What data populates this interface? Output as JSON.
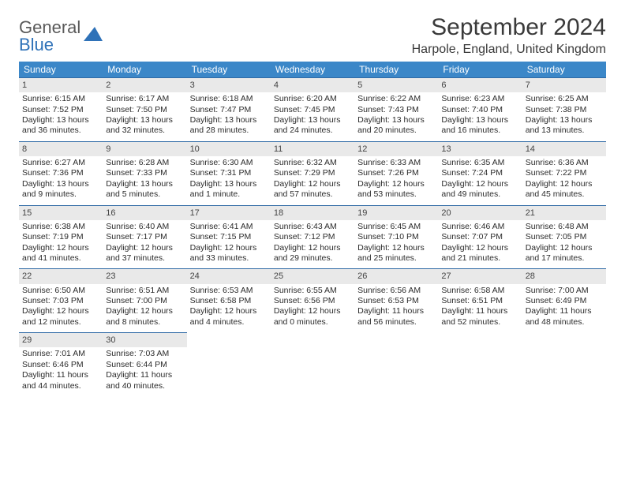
{
  "brand": {
    "part1": "General",
    "part2": "Blue"
  },
  "title": "September 2024",
  "location": "Harpole, England, United Kingdom",
  "header_bg": "#3b87c8",
  "daynum_bg": "#e9e9e9",
  "daynum_border": "#2f6aa5",
  "weekdays": [
    "Sunday",
    "Monday",
    "Tuesday",
    "Wednesday",
    "Thursday",
    "Friday",
    "Saturday"
  ],
  "weeks": [
    [
      {
        "n": "1",
        "sr": "Sunrise: 6:15 AM",
        "ss": "Sunset: 7:52 PM",
        "dl": "Daylight: 13 hours and 36 minutes."
      },
      {
        "n": "2",
        "sr": "Sunrise: 6:17 AM",
        "ss": "Sunset: 7:50 PM",
        "dl": "Daylight: 13 hours and 32 minutes."
      },
      {
        "n": "3",
        "sr": "Sunrise: 6:18 AM",
        "ss": "Sunset: 7:47 PM",
        "dl": "Daylight: 13 hours and 28 minutes."
      },
      {
        "n": "4",
        "sr": "Sunrise: 6:20 AM",
        "ss": "Sunset: 7:45 PM",
        "dl": "Daylight: 13 hours and 24 minutes."
      },
      {
        "n": "5",
        "sr": "Sunrise: 6:22 AM",
        "ss": "Sunset: 7:43 PM",
        "dl": "Daylight: 13 hours and 20 minutes."
      },
      {
        "n": "6",
        "sr": "Sunrise: 6:23 AM",
        "ss": "Sunset: 7:40 PM",
        "dl": "Daylight: 13 hours and 16 minutes."
      },
      {
        "n": "7",
        "sr": "Sunrise: 6:25 AM",
        "ss": "Sunset: 7:38 PM",
        "dl": "Daylight: 13 hours and 13 minutes."
      }
    ],
    [
      {
        "n": "8",
        "sr": "Sunrise: 6:27 AM",
        "ss": "Sunset: 7:36 PM",
        "dl": "Daylight: 13 hours and 9 minutes."
      },
      {
        "n": "9",
        "sr": "Sunrise: 6:28 AM",
        "ss": "Sunset: 7:33 PM",
        "dl": "Daylight: 13 hours and 5 minutes."
      },
      {
        "n": "10",
        "sr": "Sunrise: 6:30 AM",
        "ss": "Sunset: 7:31 PM",
        "dl": "Daylight: 13 hours and 1 minute."
      },
      {
        "n": "11",
        "sr": "Sunrise: 6:32 AM",
        "ss": "Sunset: 7:29 PM",
        "dl": "Daylight: 12 hours and 57 minutes."
      },
      {
        "n": "12",
        "sr": "Sunrise: 6:33 AM",
        "ss": "Sunset: 7:26 PM",
        "dl": "Daylight: 12 hours and 53 minutes."
      },
      {
        "n": "13",
        "sr": "Sunrise: 6:35 AM",
        "ss": "Sunset: 7:24 PM",
        "dl": "Daylight: 12 hours and 49 minutes."
      },
      {
        "n": "14",
        "sr": "Sunrise: 6:36 AM",
        "ss": "Sunset: 7:22 PM",
        "dl": "Daylight: 12 hours and 45 minutes."
      }
    ],
    [
      {
        "n": "15",
        "sr": "Sunrise: 6:38 AM",
        "ss": "Sunset: 7:19 PM",
        "dl": "Daylight: 12 hours and 41 minutes."
      },
      {
        "n": "16",
        "sr": "Sunrise: 6:40 AM",
        "ss": "Sunset: 7:17 PM",
        "dl": "Daylight: 12 hours and 37 minutes."
      },
      {
        "n": "17",
        "sr": "Sunrise: 6:41 AM",
        "ss": "Sunset: 7:15 PM",
        "dl": "Daylight: 12 hours and 33 minutes."
      },
      {
        "n": "18",
        "sr": "Sunrise: 6:43 AM",
        "ss": "Sunset: 7:12 PM",
        "dl": "Daylight: 12 hours and 29 minutes."
      },
      {
        "n": "19",
        "sr": "Sunrise: 6:45 AM",
        "ss": "Sunset: 7:10 PM",
        "dl": "Daylight: 12 hours and 25 minutes."
      },
      {
        "n": "20",
        "sr": "Sunrise: 6:46 AM",
        "ss": "Sunset: 7:07 PM",
        "dl": "Daylight: 12 hours and 21 minutes."
      },
      {
        "n": "21",
        "sr": "Sunrise: 6:48 AM",
        "ss": "Sunset: 7:05 PM",
        "dl": "Daylight: 12 hours and 17 minutes."
      }
    ],
    [
      {
        "n": "22",
        "sr": "Sunrise: 6:50 AM",
        "ss": "Sunset: 7:03 PM",
        "dl": "Daylight: 12 hours and 12 minutes."
      },
      {
        "n": "23",
        "sr": "Sunrise: 6:51 AM",
        "ss": "Sunset: 7:00 PM",
        "dl": "Daylight: 12 hours and 8 minutes."
      },
      {
        "n": "24",
        "sr": "Sunrise: 6:53 AM",
        "ss": "Sunset: 6:58 PM",
        "dl": "Daylight: 12 hours and 4 minutes."
      },
      {
        "n": "25",
        "sr": "Sunrise: 6:55 AM",
        "ss": "Sunset: 6:56 PM",
        "dl": "Daylight: 12 hours and 0 minutes."
      },
      {
        "n": "26",
        "sr": "Sunrise: 6:56 AM",
        "ss": "Sunset: 6:53 PM",
        "dl": "Daylight: 11 hours and 56 minutes."
      },
      {
        "n": "27",
        "sr": "Sunrise: 6:58 AM",
        "ss": "Sunset: 6:51 PM",
        "dl": "Daylight: 11 hours and 52 minutes."
      },
      {
        "n": "28",
        "sr": "Sunrise: 7:00 AM",
        "ss": "Sunset: 6:49 PM",
        "dl": "Daylight: 11 hours and 48 minutes."
      }
    ],
    [
      {
        "n": "29",
        "sr": "Sunrise: 7:01 AM",
        "ss": "Sunset: 6:46 PM",
        "dl": "Daylight: 11 hours and 44 minutes."
      },
      {
        "n": "30",
        "sr": "Sunrise: 7:03 AM",
        "ss": "Sunset: 6:44 PM",
        "dl": "Daylight: 11 hours and 40 minutes."
      },
      {
        "empty": true
      },
      {
        "empty": true
      },
      {
        "empty": true
      },
      {
        "empty": true
      },
      {
        "empty": true
      }
    ]
  ]
}
